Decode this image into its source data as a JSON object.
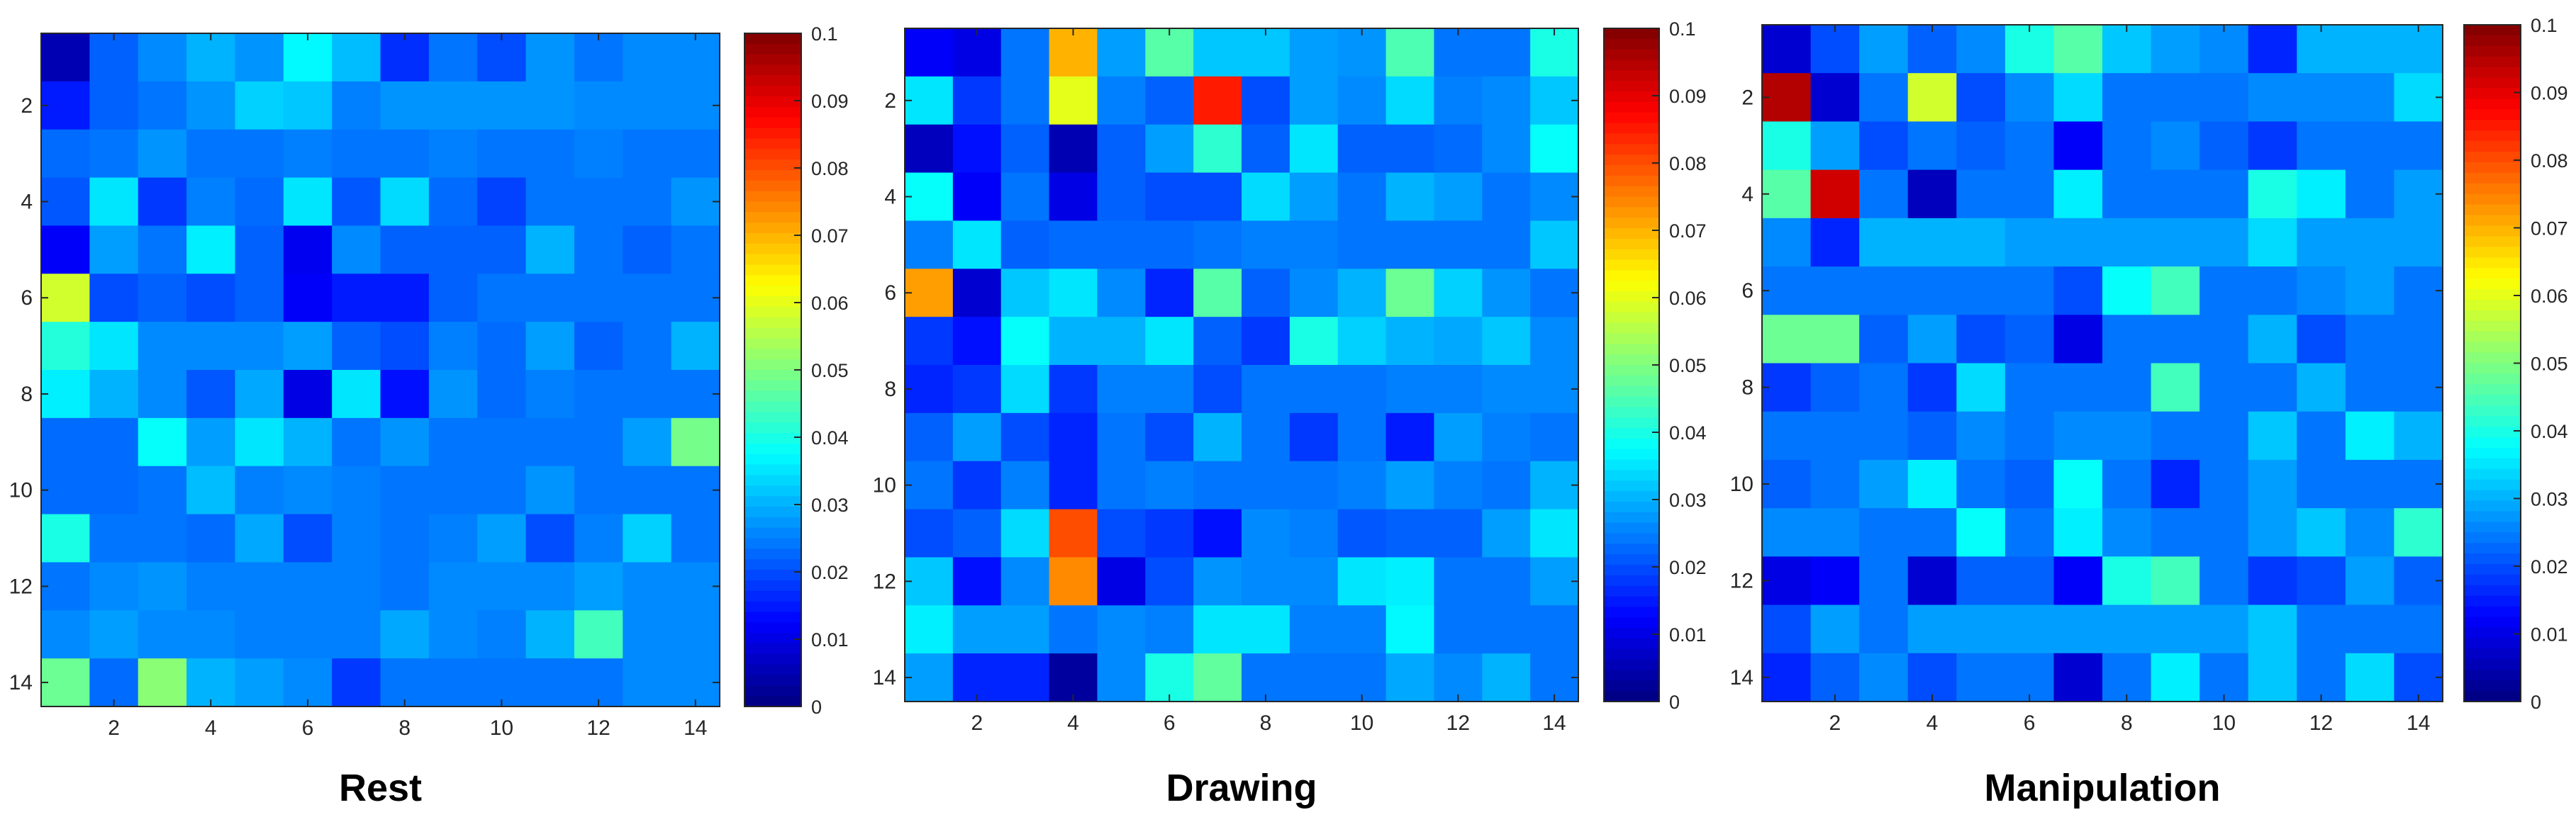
{
  "figure": {
    "colormap": "jet",
    "colors": [
      "#00008f",
      "#0000ff",
      "#00ffff",
      "#ffff00",
      "#ff0000",
      "#800000"
    ]
  },
  "chart_data": [
    {
      "type": "heatmap",
      "title": "Rest",
      "xlabel": "",
      "ylabel": "",
      "xticks": [
        "2",
        "4",
        "6",
        "8",
        "10",
        "12",
        "14"
      ],
      "yticks": [
        "2",
        "4",
        "6",
        "8",
        "10",
        "12",
        "14"
      ],
      "colorbar": {
        "range": [
          0,
          0.1
        ],
        "ticks": [
          "0",
          "0.01",
          "0.02",
          "0.03",
          "0.04",
          "0.05",
          "0.06",
          "0.07",
          "0.08",
          "0.09",
          "0.1"
        ]
      },
      "values": [
        [
          0.005,
          0.022,
          0.026,
          0.03,
          0.027,
          0.037,
          0.031,
          0.017,
          0.024,
          0.02,
          0.027,
          0.024,
          0.026,
          0.026
        ],
        [
          0.015,
          0.022,
          0.024,
          0.027,
          0.033,
          0.032,
          0.025,
          0.027,
          0.027,
          0.027,
          0.027,
          0.026,
          0.026,
          0.026
        ],
        [
          0.023,
          0.024,
          0.027,
          0.024,
          0.024,
          0.025,
          0.024,
          0.024,
          0.025,
          0.024,
          0.024,
          0.025,
          0.024,
          0.024
        ],
        [
          0.021,
          0.035,
          0.018,
          0.025,
          0.023,
          0.035,
          0.021,
          0.034,
          0.023,
          0.019,
          0.024,
          0.024,
          0.024,
          0.027
        ],
        [
          0.012,
          0.028,
          0.024,
          0.036,
          0.022,
          0.011,
          0.026,
          0.022,
          0.022,
          0.022,
          0.03,
          0.024,
          0.022,
          0.024
        ],
        [
          0.058,
          0.02,
          0.022,
          0.02,
          0.022,
          0.012,
          0.015,
          0.015,
          0.022,
          0.024,
          0.024,
          0.024,
          0.024,
          0.024
        ],
        [
          0.041,
          0.035,
          0.026,
          0.026,
          0.026,
          0.028,
          0.022,
          0.02,
          0.025,
          0.023,
          0.028,
          0.022,
          0.024,
          0.03
        ],
        [
          0.036,
          0.03,
          0.026,
          0.021,
          0.029,
          0.01,
          0.035,
          0.014,
          0.027,
          0.023,
          0.025,
          0.024,
          0.024,
          0.024
        ],
        [
          0.023,
          0.023,
          0.038,
          0.028,
          0.035,
          0.03,
          0.024,
          0.027,
          0.024,
          0.024,
          0.024,
          0.024,
          0.028,
          0.049
        ],
        [
          0.023,
          0.023,
          0.024,
          0.031,
          0.025,
          0.026,
          0.025,
          0.024,
          0.024,
          0.024,
          0.027,
          0.024,
          0.024,
          0.024
        ],
        [
          0.04,
          0.024,
          0.024,
          0.023,
          0.029,
          0.02,
          0.025,
          0.024,
          0.025,
          0.028,
          0.02,
          0.025,
          0.033,
          0.024
        ],
        [
          0.024,
          0.026,
          0.027,
          0.025,
          0.025,
          0.025,
          0.025,
          0.024,
          0.026,
          0.026,
          0.026,
          0.028,
          0.026,
          0.026
        ],
        [
          0.026,
          0.028,
          0.026,
          0.026,
          0.025,
          0.025,
          0.025,
          0.029,
          0.026,
          0.025,
          0.03,
          0.044,
          0.026,
          0.026
        ],
        [
          0.048,
          0.023,
          0.051,
          0.03,
          0.028,
          0.026,
          0.018,
          0.024,
          0.024,
          0.024,
          0.024,
          0.024,
          0.026,
          0.026
        ]
      ]
    },
    {
      "type": "heatmap",
      "title": "Drawing",
      "xlabel": "",
      "ylabel": "",
      "xticks": [
        "2",
        "4",
        "6",
        "8",
        "10",
        "12",
        "14"
      ],
      "yticks": [
        "2",
        "4",
        "6",
        "8",
        "10",
        "12",
        "14"
      ],
      "colorbar": {
        "range": [
          0,
          0.1
        ],
        "ticks": [
          "0",
          "0.01",
          "0.02",
          "0.03",
          "0.04",
          "0.05",
          "0.06",
          "0.07",
          "0.08",
          "0.09",
          "0.1"
        ]
      },
      "values": [
        [
          0.012,
          0.01,
          0.024,
          0.07,
          0.028,
          0.046,
          0.032,
          0.032,
          0.028,
          0.027,
          0.045,
          0.024,
          0.024,
          0.04
        ],
        [
          0.035,
          0.018,
          0.024,
          0.06,
          0.025,
          0.022,
          0.085,
          0.02,
          0.028,
          0.026,
          0.034,
          0.025,
          0.026,
          0.032
        ],
        [
          0.006,
          0.014,
          0.022,
          0.005,
          0.022,
          0.028,
          0.042,
          0.022,
          0.035,
          0.022,
          0.022,
          0.023,
          0.026,
          0.038
        ],
        [
          0.038,
          0.012,
          0.024,
          0.01,
          0.022,
          0.02,
          0.02,
          0.034,
          0.028,
          0.024,
          0.03,
          0.028,
          0.024,
          0.026
        ],
        [
          0.025,
          0.035,
          0.022,
          0.023,
          0.023,
          0.023,
          0.024,
          0.025,
          0.025,
          0.024,
          0.024,
          0.024,
          0.024,
          0.032
        ],
        [
          0.072,
          0.008,
          0.032,
          0.035,
          0.026,
          0.016,
          0.046,
          0.022,
          0.026,
          0.03,
          0.048,
          0.033,
          0.027,
          0.024
        ],
        [
          0.018,
          0.014,
          0.038,
          0.03,
          0.03,
          0.035,
          0.022,
          0.018,
          0.04,
          0.033,
          0.03,
          0.029,
          0.032,
          0.026
        ],
        [
          0.016,
          0.018,
          0.034,
          0.018,
          0.025,
          0.025,
          0.02,
          0.024,
          0.024,
          0.024,
          0.025,
          0.025,
          0.026,
          0.026
        ],
        [
          0.022,
          0.028,
          0.02,
          0.016,
          0.024,
          0.02,
          0.03,
          0.024,
          0.018,
          0.024,
          0.015,
          0.028,
          0.025,
          0.024
        ],
        [
          0.024,
          0.018,
          0.025,
          0.016,
          0.024,
          0.025,
          0.024,
          0.024,
          0.024,
          0.025,
          0.028,
          0.025,
          0.024,
          0.03
        ],
        [
          0.02,
          0.022,
          0.034,
          0.08,
          0.02,
          0.018,
          0.014,
          0.026,
          0.025,
          0.021,
          0.022,
          0.022,
          0.028,
          0.035
        ],
        [
          0.032,
          0.014,
          0.026,
          0.074,
          0.01,
          0.02,
          0.027,
          0.026,
          0.026,
          0.035,
          0.036,
          0.024,
          0.024,
          0.028
        ],
        [
          0.036,
          0.028,
          0.028,
          0.024,
          0.026,
          0.025,
          0.035,
          0.035,
          0.025,
          0.025,
          0.037,
          0.024,
          0.024,
          0.024
        ],
        [
          0.028,
          0.016,
          0.016,
          0.003,
          0.026,
          0.04,
          0.047,
          0.024,
          0.024,
          0.024,
          0.029,
          0.026,
          0.03,
          0.024
        ]
      ]
    },
    {
      "type": "heatmap",
      "title": "Manipulation",
      "xlabel": "",
      "ylabel": "",
      "xticks": [
        "2",
        "4",
        "6",
        "8",
        "10",
        "12",
        "14"
      ],
      "yticks": [
        "2",
        "4",
        "6",
        "8",
        "10",
        "12",
        "14"
      ],
      "colorbar": {
        "range": [
          0,
          0.1
        ],
        "ticks": [
          "0",
          "0.01",
          "0.02",
          "0.03",
          "0.04",
          "0.05",
          "0.06",
          "0.07",
          "0.08",
          "0.09",
          "0.1"
        ]
      },
      "values": [
        [
          0.008,
          0.02,
          0.028,
          0.022,
          0.026,
          0.04,
          0.046,
          0.032,
          0.028,
          0.026,
          0.016,
          0.03,
          0.03,
          0.03
        ],
        [
          0.095,
          0.008,
          0.024,
          0.058,
          0.02,
          0.026,
          0.034,
          0.024,
          0.024,
          0.024,
          0.026,
          0.026,
          0.026,
          0.034
        ],
        [
          0.04,
          0.028,
          0.02,
          0.024,
          0.022,
          0.024,
          0.012,
          0.024,
          0.026,
          0.022,
          0.018,
          0.024,
          0.024,
          0.024
        ],
        [
          0.046,
          0.092,
          0.024,
          0.006,
          0.024,
          0.024,
          0.036,
          0.024,
          0.024,
          0.024,
          0.04,
          0.036,
          0.024,
          0.028
        ],
        [
          0.026,
          0.016,
          0.03,
          0.03,
          0.03,
          0.028,
          0.028,
          0.028,
          0.028,
          0.028,
          0.034,
          0.028,
          0.028,
          0.028
        ],
        [
          0.024,
          0.024,
          0.024,
          0.024,
          0.024,
          0.024,
          0.02,
          0.038,
          0.044,
          0.024,
          0.024,
          0.026,
          0.028,
          0.024
        ],
        [
          0.048,
          0.048,
          0.022,
          0.028,
          0.02,
          0.022,
          0.01,
          0.024,
          0.024,
          0.024,
          0.03,
          0.02,
          0.024,
          0.024
        ],
        [
          0.018,
          0.022,
          0.024,
          0.018,
          0.034,
          0.024,
          0.024,
          0.024,
          0.044,
          0.024,
          0.024,
          0.03,
          0.024,
          0.024
        ],
        [
          0.024,
          0.024,
          0.024,
          0.022,
          0.026,
          0.024,
          0.026,
          0.026,
          0.024,
          0.024,
          0.032,
          0.024,
          0.036,
          0.03
        ],
        [
          0.022,
          0.024,
          0.028,
          0.036,
          0.024,
          0.022,
          0.038,
          0.024,
          0.016,
          0.024,
          0.028,
          0.024,
          0.024,
          0.024
        ],
        [
          0.026,
          0.026,
          0.024,
          0.024,
          0.038,
          0.024,
          0.036,
          0.026,
          0.024,
          0.024,
          0.028,
          0.032,
          0.026,
          0.042
        ],
        [
          0.01,
          0.012,
          0.024,
          0.008,
          0.022,
          0.022,
          0.012,
          0.04,
          0.044,
          0.024,
          0.018,
          0.02,
          0.028,
          0.022
        ],
        [
          0.02,
          0.028,
          0.024,
          0.028,
          0.028,
          0.028,
          0.028,
          0.028,
          0.028,
          0.028,
          0.032,
          0.024,
          0.024,
          0.024
        ],
        [
          0.016,
          0.022,
          0.026,
          0.02,
          0.024,
          0.024,
          0.008,
          0.024,
          0.036,
          0.024,
          0.032,
          0.024,
          0.034,
          0.02
        ]
      ]
    }
  ]
}
